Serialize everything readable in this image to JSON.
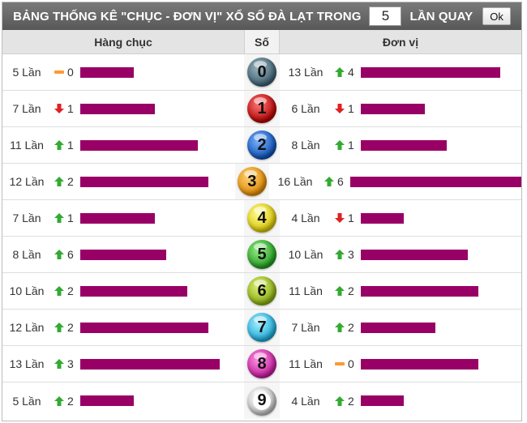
{
  "title": {
    "prefix": "BẢNG THỐNG KÊ \"CHỤC - ĐƠN VỊ\" XỔ SỐ ĐÀ LẠT TRONG",
    "count_value": "5",
    "suffix": "LẦN QUAY",
    "ok_label": "Ok"
  },
  "headers": {
    "tens": "Hàng chục",
    "digit": "Số",
    "units": "Đơn vị"
  },
  "colors": {
    "bar": "#990066",
    "up": "#33aa33",
    "down": "#dd2222",
    "same": "#ff9933"
  },
  "rows": [
    {
      "digit": "0",
      "tens": {
        "times": "5 Lần",
        "trend": "same",
        "delta": "0",
        "level": 5
      },
      "units": {
        "times": "13 Lần",
        "trend": "up",
        "delta": "4",
        "level": 13
      }
    },
    {
      "digit": "1",
      "tens": {
        "times": "7 Lần",
        "trend": "down",
        "delta": "1",
        "level": 7
      },
      "units": {
        "times": "6 Lần",
        "trend": "down",
        "delta": "1",
        "level": 6
      }
    },
    {
      "digit": "2",
      "tens": {
        "times": "11 Lần",
        "trend": "up",
        "delta": "1",
        "level": 11
      },
      "units": {
        "times": "8 Lần",
        "trend": "up",
        "delta": "1",
        "level": 8
      }
    },
    {
      "digit": "3",
      "tens": {
        "times": "12 Lần",
        "trend": "up",
        "delta": "2",
        "level": 12
      },
      "units": {
        "times": "16 Lần",
        "trend": "up",
        "delta": "6",
        "level": 16
      }
    },
    {
      "digit": "4",
      "tens": {
        "times": "7 Lần",
        "trend": "up",
        "delta": "1",
        "level": 7
      },
      "units": {
        "times": "4 Lần",
        "trend": "down",
        "delta": "1",
        "level": 4
      }
    },
    {
      "digit": "5",
      "tens": {
        "times": "8 Lần",
        "trend": "up",
        "delta": "6",
        "level": 8
      },
      "units": {
        "times": "10 Lần",
        "trend": "up",
        "delta": "3",
        "level": 10
      }
    },
    {
      "digit": "6",
      "tens": {
        "times": "10 Lần",
        "trend": "up",
        "delta": "2",
        "level": 10
      },
      "units": {
        "times": "11 Lần",
        "trend": "up",
        "delta": "2",
        "level": 11
      }
    },
    {
      "digit": "7",
      "tens": {
        "times": "12 Lần",
        "trend": "up",
        "delta": "2",
        "level": 12
      },
      "units": {
        "times": "7 Lần",
        "trend": "up",
        "delta": "2",
        "level": 7
      }
    },
    {
      "digit": "8",
      "tens": {
        "times": "13 Lần",
        "trend": "up",
        "delta": "3",
        "level": 13
      },
      "units": {
        "times": "11 Lần",
        "trend": "same",
        "delta": "0",
        "level": 11
      }
    },
    {
      "digit": "9",
      "tens": {
        "times": "5 Lần",
        "trend": "up",
        "delta": "2",
        "level": 5
      },
      "units": {
        "times": "4 Lần",
        "trend": "up",
        "delta": "2",
        "level": 4
      }
    }
  ]
}
